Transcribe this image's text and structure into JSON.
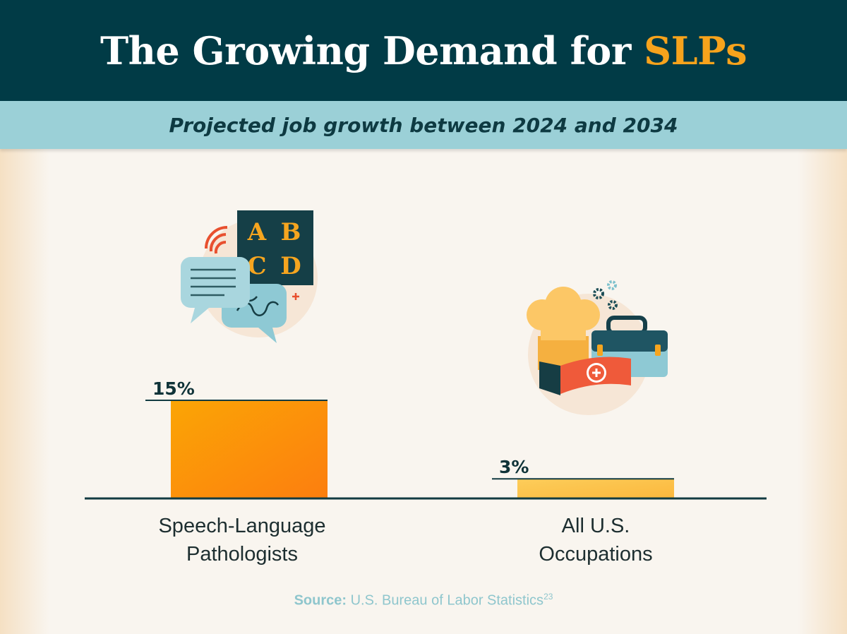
{
  "header": {
    "title_main": "The Growing Demand for ",
    "title_accent": "SLPs",
    "subtitle": "Projected job growth between 2024 and 2034"
  },
  "icons": {
    "slp": "speech-therapy-illustration-icon",
    "slp_letters": [
      "A",
      "B",
      "C",
      "D"
    ],
    "all": "occupations-illustration-icon"
  },
  "chart_data": {
    "type": "bar",
    "title": "Projected job growth between 2024 and 2034",
    "categories": [
      "Speech-Language Pathologists",
      "All U.S. Occupations"
    ],
    "category_lines": [
      [
        "Speech-Language",
        "Pathologists"
      ],
      [
        "All U.S.",
        "Occupations"
      ]
    ],
    "values": [
      15,
      3
    ],
    "value_labels": [
      "15%",
      "3%"
    ],
    "unit": "%",
    "xlabel": "",
    "ylabel": "",
    "ylim": [
      0,
      15
    ],
    "grid": false,
    "legend": "none",
    "colors": [
      "#fb8e0a",
      "#fbc44f"
    ]
  },
  "source": {
    "label": "Source:",
    "text": " U.S. Bureau of Labor Statistics",
    "sup": "23"
  },
  "colors": {
    "header_bg": "#013b46",
    "accent": "#f7a31c",
    "subtitle_bg": "#9bd0d7",
    "source_text": "#8fc6cd",
    "page_bg": "#f9f5ef"
  }
}
